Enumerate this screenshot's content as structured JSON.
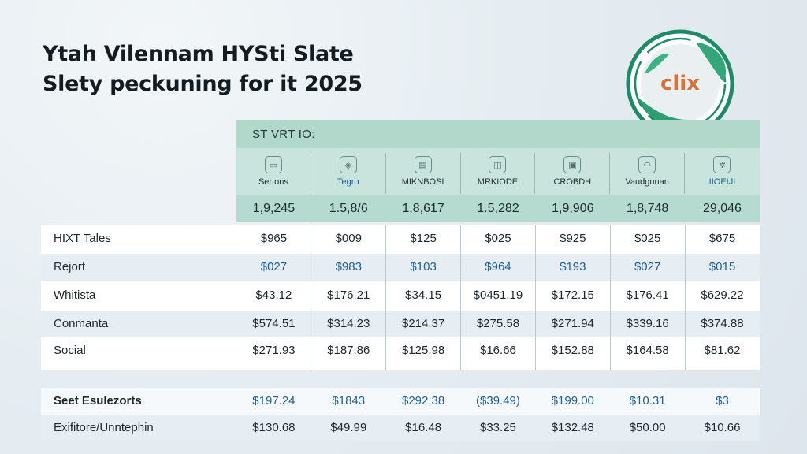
{
  "title": {
    "line1": "Ytah Vilennam HYSti Slate",
    "line2": "Slety peckuning for it 2025"
  },
  "logo": {
    "text": "clix",
    "icon": "leaf-badge-icon",
    "colors": {
      "ring": "#1e8a66",
      "leaf": "#34a77a",
      "text_c": "#2d8a60",
      "text_ix": "#d9713a"
    }
  },
  "header": {
    "label": "ST VRT IO:",
    "categories": [
      {
        "label": "Sertons",
        "icon": "bed-icon"
      },
      {
        "label": "Tegro",
        "icon": "jar-icon"
      },
      {
        "label": "MIKNBOSI",
        "icon": "clipboard-icon"
      },
      {
        "label": "MRKIODE",
        "icon": "cake-icon"
      },
      {
        "label": "CROBDH",
        "icon": "lantern-icon"
      },
      {
        "label": "Vaudgunan",
        "icon": "dome-icon"
      },
      {
        "label": "IIOEIJI",
        "icon": "gear-icon"
      }
    ],
    "totals": [
      "1,9,245",
      "1.5,8/6",
      "1,8,617",
      "1.5,282",
      "1,9,906",
      "1,8,748",
      "29,046"
    ]
  },
  "rows": [
    {
      "label": "HIXT Tales",
      "values": [
        "$965",
        "$009",
        "$125",
        "$025",
        "$925",
        "$025",
        "$675"
      ]
    },
    {
      "label": "Rejort",
      "values": [
        "$027",
        "$983",
        "$103",
        "$964",
        "$193",
        "$027",
        "$015"
      ]
    },
    {
      "label": "Whitista",
      "values": [
        "$43.12",
        "$176.21",
        "$34.15",
        "$0451.19",
        "$172.15",
        "$176.41",
        "$629.22"
      ]
    },
    {
      "label": "Conmanta",
      "values": [
        "$574.51",
        "$314.23",
        "$214.37",
        "$275.58",
        "$271.94",
        "$339.16",
        "$374.88"
      ]
    },
    {
      "label": "Social",
      "values": [
        "$271.93",
        "$187.86",
        "$125.98",
        "$16.66",
        "$152.88",
        "$164.58",
        "$81.62"
      ]
    }
  ],
  "lower_rows": [
    {
      "label": "Seet Esulezorts",
      "values": [
        "$197.24",
        "$1843",
        "$292.38",
        "($39.49)",
        "$199.00",
        "$10.31",
        "$3"
      ]
    },
    {
      "label": "Exifitore/Unntephin",
      "values": [
        "$130.68",
        "$49.99",
        "$16.48",
        "$33.25",
        "$132.48",
        "$50.00",
        "$10.66"
      ]
    }
  ]
}
